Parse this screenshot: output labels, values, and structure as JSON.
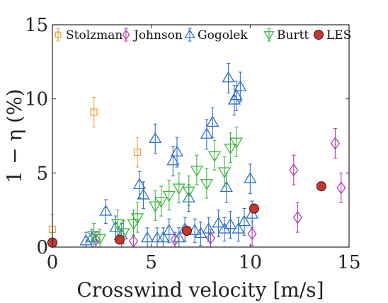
{
  "chart_data": {
    "type": "scatter",
    "title": "",
    "xlabel": "Crosswind velocity [m/s]",
    "ylabel": "1 − η (%)",
    "xlim": [
      0,
      15
    ],
    "ylim": [
      0,
      15
    ],
    "xticks": [
      "0",
      "5",
      "10",
      "15"
    ],
    "yticks": [
      "0",
      "5",
      "10",
      "15"
    ],
    "grid": false,
    "legend": "top, single row",
    "series": [
      {
        "name": "Stolzman",
        "marker": "square",
        "color": "#E8A33D",
        "points": [
          [
            0.0,
            1.2,
            1.0
          ],
          [
            2.1,
            9.1,
            1.0
          ],
          [
            4.3,
            6.4,
            1.0
          ]
        ]
      },
      {
        "name": "Johnson",
        "marker": "diamond",
        "color": "#B23FB0",
        "points": [
          [
            2.2,
            0.5,
            0.5
          ],
          [
            4.1,
            0.4,
            0.4
          ],
          [
            6.2,
            0.5,
            0.5
          ],
          [
            8.0,
            0.6,
            0.6
          ],
          [
            10.1,
            0.9,
            0.8
          ],
          [
            12.2,
            5.2,
            1.0
          ],
          [
            12.4,
            2.0,
            1.0
          ],
          [
            14.3,
            7.0,
            1.0
          ],
          [
            14.6,
            4.0,
            1.0
          ]
        ]
      },
      {
        "name": "Gogolek",
        "marker": "triangle-up",
        "color": "#2E70C8",
        "points": [
          [
            1.7,
            0.4,
            0.6
          ],
          [
            2.0,
            0.6,
            0.6
          ],
          [
            2.7,
            2.4,
            0.8
          ],
          [
            3.2,
            1.3,
            0.8
          ],
          [
            3.5,
            0.8,
            0.8
          ],
          [
            4.4,
            4.2,
            0.9
          ],
          [
            4.6,
            3.5,
            0.9
          ],
          [
            4.8,
            0.6,
            0.7
          ],
          [
            5.2,
            7.3,
            1.0
          ],
          [
            5.3,
            0.6,
            0.7
          ],
          [
            5.6,
            0.6,
            0.7
          ],
          [
            5.9,
            1.1,
            0.8
          ],
          [
            6.1,
            5.8,
            1.0
          ],
          [
            6.3,
            6.4,
            1.0
          ],
          [
            6.4,
            0.6,
            0.7
          ],
          [
            6.7,
            1.2,
            0.8
          ],
          [
            6.9,
            3.3,
            0.9
          ],
          [
            7.2,
            1.1,
            0.8
          ],
          [
            7.5,
            0.9,
            0.8
          ],
          [
            7.8,
            7.6,
            1.0
          ],
          [
            7.9,
            1.2,
            0.8
          ],
          [
            8.1,
            8.4,
            1.0
          ],
          [
            8.4,
            1.6,
            0.9
          ],
          [
            8.7,
            1.2,
            0.8
          ],
          [
            8.8,
            4.0,
            1.0
          ],
          [
            8.9,
            11.4,
            1.0
          ],
          [
            9.0,
            1.5,
            0.9
          ],
          [
            9.2,
            9.9,
            1.0
          ],
          [
            9.3,
            10.2,
            1.0
          ],
          [
            9.4,
            1.2,
            0.8
          ],
          [
            9.5,
            10.8,
            1.0
          ],
          [
            9.7,
            1.7,
            0.9
          ],
          [
            10.0,
            4.6,
            1.0
          ],
          [
            10.1,
            2.2,
            0.9
          ]
        ]
      },
      {
        "name": "Burtt",
        "marker": "triangle-down",
        "color": "#3DB53D",
        "points": [
          [
            2.1,
            0.8,
            0.8
          ],
          [
            2.4,
            0.6,
            0.6
          ],
          [
            3.3,
            1.6,
            0.9
          ],
          [
            3.6,
            1.0,
            0.8
          ],
          [
            4.1,
            1.6,
            0.9
          ],
          [
            4.3,
            2.0,
            1.0
          ],
          [
            5.2,
            2.8,
            1.0
          ],
          [
            5.5,
            3.1,
            1.0
          ],
          [
            5.9,
            3.5,
            1.0
          ],
          [
            6.4,
            4.0,
            1.0
          ],
          [
            6.9,
            3.8,
            1.0
          ],
          [
            7.3,
            5.2,
            1.0
          ],
          [
            7.8,
            4.3,
            1.0
          ],
          [
            8.2,
            6.2,
            1.0
          ],
          [
            8.7,
            5.1,
            1.0
          ],
          [
            9.0,
            6.7,
            1.0
          ],
          [
            9.3,
            7.1,
            1.0
          ]
        ]
      },
      {
        "name": "LES",
        "marker": "circle",
        "color": "#C4372E",
        "points": [
          [
            0.0,
            0.3,
            0
          ],
          [
            3.4,
            0.5,
            0
          ],
          [
            6.8,
            1.1,
            0
          ],
          [
            10.2,
            2.6,
            0
          ],
          [
            13.6,
            4.1,
            0
          ]
        ]
      }
    ]
  }
}
